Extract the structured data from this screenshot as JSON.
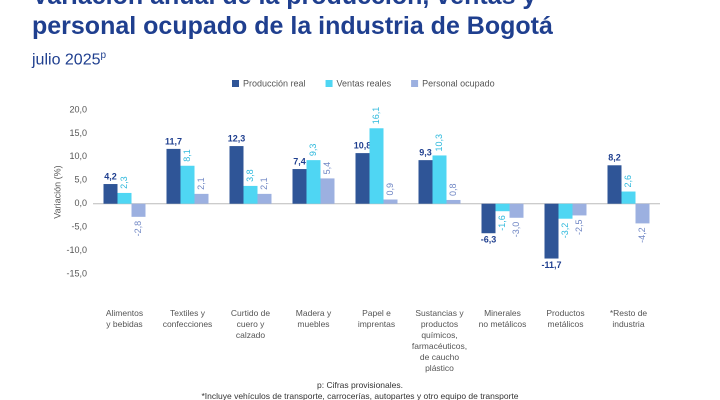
{
  "chart_data": {
    "type": "bar",
    "title": "Variación anual de la producción, ventas y\npersonal ocupado de la industria de Bogotá",
    "subtitle": "julio 2025",
    "subtitle_superscript": "p",
    "y_label": "Variación (%)",
    "categories": [
      "Alimentos\ny bebidas",
      "Textiles y\nconfecciones",
      "Curtido de\ncuero y\ncalzado",
      "Madera y\nmuebles",
      "Papel e\nimprentas",
      "Sustancias y\nproductos\nquímicos,\nfarmacéuticos,\nde caucho\nplástico",
      "Minerales\nno metálicos",
      "Productos\nmetálicos",
      "*Resto de\nindustria"
    ],
    "series": [
      {
        "name": "Producción real",
        "color": "#2f5597",
        "values": [
          4.2,
          11.7,
          12.3,
          7.4,
          10.8,
          9.3,
          -6.3,
          -11.7,
          8.2
        ],
        "value_labels": [
          "4,2",
          "11,7",
          "12,3",
          "7,4",
          "10,8",
          "9,3",
          "-6,3",
          "-11,7",
          "8,2"
        ]
      },
      {
        "name": "Ventas reales",
        "color": "#4fd6f3",
        "values": [
          2.3,
          8.1,
          3.8,
          9.3,
          16.1,
          10.3,
          -1.6,
          -3.2,
          2.6
        ],
        "value_labels": [
          "2,3",
          "8,1",
          "3,8",
          "9,3",
          "16,1",
          "10,3",
          "-1,6",
          "-3,2",
          "2,6"
        ]
      },
      {
        "name": "Personal ocupado",
        "color": "#9cb0e0",
        "values": [
          -2.8,
          2.1,
          2.1,
          5.4,
          0.9,
          0.8,
          -3.0,
          -2.5,
          -4.2
        ],
        "value_labels": [
          "-2,8",
          "2,1",
          "2,1",
          "5,4",
          "0,9",
          "0,8",
          "-3,0",
          "-2,5",
          "-4,2"
        ]
      }
    ],
    "ylim": [
      -15,
      20
    ],
    "yticks": [
      {
        "value": -15,
        "label": "-15,0"
      },
      {
        "value": -10,
        "label": "-10,0"
      },
      {
        "value": -5,
        "label": "-5,0"
      },
      {
        "value": 0,
        "label": "0,0"
      },
      {
        "value": 5,
        "label": "5,0"
      },
      {
        "value": 10,
        "label": "10,0"
      },
      {
        "value": 15,
        "label": "15,0"
      },
      {
        "value": 20,
        "label": "20,0"
      }
    ],
    "grid": false,
    "notes": [
      "p: Cifras provisionales.",
      "*Incluye vehículos de transporte, carrocerías, autopartes y otro equipo de transporte"
    ]
  }
}
